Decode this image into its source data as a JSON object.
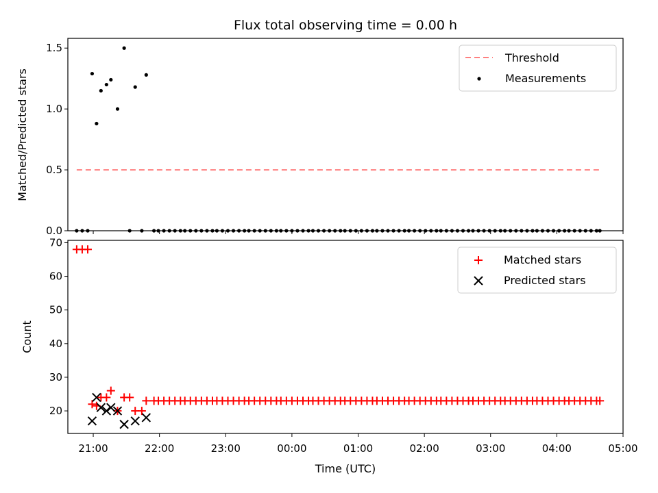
{
  "chart_data": [
    {
      "type": "scatter",
      "title": "Flux total observing time = 0.00 h",
      "ylabel": "Matched/Predicted stars",
      "xlabel": "",
      "xlim": [
        "20:37",
        "05:00"
      ],
      "ylim": [
        0,
        1.58
      ],
      "yticks": [
        0.0,
        0.5,
        1.0,
        1.5
      ],
      "ytick_labels": [
        "0.0",
        "0.5",
        "1.0",
        "1.5"
      ],
      "legend_position": "top-right",
      "grid": false,
      "threshold": {
        "name": "Threshold",
        "color": "#ff7f7f",
        "style": "dashed",
        "value": 0.5,
        "x_start": "20:45",
        "x_end": "04:39"
      },
      "series": [
        {
          "name": "Measurements",
          "marker": "dot",
          "color": "#000000",
          "points": [
            [
              "20:45",
              0
            ],
            [
              "20:50",
              0
            ],
            [
              "20:55",
              0
            ],
            [
              "20:59",
              1.29
            ],
            [
              "21:03",
              0.88
            ],
            [
              "21:07",
              1.15
            ],
            [
              "21:12",
              1.2
            ],
            [
              "21:16",
              1.24
            ],
            [
              "21:22",
              1.0
            ],
            [
              "21:28",
              1.5
            ],
            [
              "21:33",
              0
            ],
            [
              "21:38",
              1.18
            ],
            [
              "21:44",
              0
            ],
            [
              "21:48",
              1.28
            ],
            [
              "21:55",
              0
            ],
            [
              "21:59",
              0
            ],
            [
              "22:04",
              0
            ],
            [
              "22:09",
              0
            ],
            [
              "22:14",
              0
            ],
            [
              "22:19",
              0
            ],
            [
              "22:23",
              0
            ],
            [
              "22:28",
              0
            ],
            [
              "22:33",
              0
            ],
            [
              "22:38",
              0
            ],
            [
              "22:43",
              0
            ],
            [
              "22:48",
              0
            ],
            [
              "22:52",
              0
            ],
            [
              "22:57",
              0
            ],
            [
              "23:02",
              0
            ],
            [
              "23:07",
              0
            ],
            [
              "23:12",
              0
            ],
            [
              "23:17",
              0
            ],
            [
              "23:21",
              0
            ],
            [
              "23:26",
              0
            ],
            [
              "23:31",
              0
            ],
            [
              "23:36",
              0
            ],
            [
              "23:41",
              0
            ],
            [
              "23:46",
              0
            ],
            [
              "23:50",
              0
            ],
            [
              "23:55",
              0
            ],
            [
              "00:00",
              0
            ],
            [
              "00:05",
              0
            ],
            [
              "00:10",
              0
            ],
            [
              "00:15",
              0
            ],
            [
              "00:19",
              0
            ],
            [
              "00:24",
              0
            ],
            [
              "00:29",
              0
            ],
            [
              "00:34",
              0
            ],
            [
              "00:39",
              0
            ],
            [
              "00:44",
              0
            ],
            [
              "00:48",
              0
            ],
            [
              "00:53",
              0
            ],
            [
              "00:58",
              0
            ],
            [
              "01:03",
              0
            ],
            [
              "01:08",
              0
            ],
            [
              "01:13",
              0
            ],
            [
              "01:17",
              0
            ],
            [
              "01:22",
              0
            ],
            [
              "01:27",
              0
            ],
            [
              "01:32",
              0
            ],
            [
              "01:37",
              0
            ],
            [
              "01:42",
              0
            ],
            [
              "01:46",
              0
            ],
            [
              "01:51",
              0
            ],
            [
              "01:56",
              0
            ],
            [
              "02:01",
              0
            ],
            [
              "02:06",
              0
            ],
            [
              "02:11",
              0
            ],
            [
              "02:15",
              0
            ],
            [
              "02:20",
              0
            ],
            [
              "02:25",
              0
            ],
            [
              "02:30",
              0
            ],
            [
              "02:35",
              0
            ],
            [
              "02:40",
              0
            ],
            [
              "02:44",
              0
            ],
            [
              "02:49",
              0
            ],
            [
              "02:54",
              0
            ],
            [
              "02:59",
              0
            ],
            [
              "03:04",
              0
            ],
            [
              "03:09",
              0
            ],
            [
              "03:13",
              0
            ],
            [
              "03:18",
              0
            ],
            [
              "03:23",
              0
            ],
            [
              "03:28",
              0
            ],
            [
              "03:33",
              0
            ],
            [
              "03:38",
              0
            ],
            [
              "03:42",
              0
            ],
            [
              "03:47",
              0
            ],
            [
              "03:52",
              0
            ],
            [
              "03:57",
              0
            ],
            [
              "04:02",
              0
            ],
            [
              "04:07",
              0
            ],
            [
              "04:11",
              0
            ],
            [
              "04:16",
              0
            ],
            [
              "04:21",
              0
            ],
            [
              "04:26",
              0
            ],
            [
              "04:31",
              0
            ],
            [
              "04:36",
              0
            ],
            [
              "04:39",
              0
            ]
          ]
        }
      ]
    },
    {
      "type": "scatter",
      "title": "",
      "ylabel": "Count",
      "xlabel": "Time (UTC)",
      "xlim": [
        "20:37",
        "05:00"
      ],
      "ylim": [
        13.3,
        70.7
      ],
      "yticks": [
        20,
        30,
        40,
        50,
        60,
        70
      ],
      "ytick_labels": [
        "20",
        "30",
        "40",
        "50",
        "60",
        "70"
      ],
      "xticks": [
        "21:00",
        "22:00",
        "23:00",
        "00:00",
        "01:00",
        "02:00",
        "03:00",
        "04:00",
        "05:00"
      ],
      "xtick_labels": [
        "21:00",
        "22:00",
        "23:00",
        "00:00",
        "01:00",
        "02:00",
        "03:00",
        "04:00",
        "05:00"
      ],
      "legend_position": "top-right",
      "grid": false,
      "series": [
        {
          "name": "Matched stars",
          "marker": "plus",
          "color": "#ff0000",
          "points": [
            [
              "20:45",
              68
            ],
            [
              "20:50",
              68
            ],
            [
              "20:55",
              68
            ],
            [
              "20:59",
              22
            ],
            [
              "21:03",
              21.5
            ],
            [
              "21:07",
              24
            ],
            [
              "21:12",
              24
            ],
            [
              "21:16",
              26
            ],
            [
              "21:22",
              20
            ],
            [
              "21:28",
              24
            ],
            [
              "21:33",
              24
            ],
            [
              "21:38",
              20
            ],
            [
              "21:44",
              20
            ],
            [
              "21:48",
              23
            ],
            [
              "21:55",
              23
            ],
            [
              "21:59",
              23
            ],
            [
              "22:04",
              23
            ],
            [
              "22:09",
              23
            ],
            [
              "22:14",
              23
            ],
            [
              "22:19",
              23
            ],
            [
              "22:23",
              23
            ],
            [
              "22:28",
              23
            ],
            [
              "22:33",
              23
            ],
            [
              "22:38",
              23
            ],
            [
              "22:43",
              23
            ],
            [
              "22:48",
              23
            ],
            [
              "22:52",
              23
            ],
            [
              "22:57",
              23
            ],
            [
              "23:02",
              23
            ],
            [
              "23:07",
              23
            ],
            [
              "23:12",
              23
            ],
            [
              "23:17",
              23
            ],
            [
              "23:21",
              23
            ],
            [
              "23:26",
              23
            ],
            [
              "23:31",
              23
            ],
            [
              "23:36",
              23
            ],
            [
              "23:41",
              23
            ],
            [
              "23:46",
              23
            ],
            [
              "23:50",
              23
            ],
            [
              "23:55",
              23
            ],
            [
              "00:00",
              23
            ],
            [
              "00:05",
              23
            ],
            [
              "00:10",
              23
            ],
            [
              "00:15",
              23
            ],
            [
              "00:19",
              23
            ],
            [
              "00:24",
              23
            ],
            [
              "00:29",
              23
            ],
            [
              "00:34",
              23
            ],
            [
              "00:39",
              23
            ],
            [
              "00:44",
              23
            ],
            [
              "00:48",
              23
            ],
            [
              "00:53",
              23
            ],
            [
              "00:58",
              23
            ],
            [
              "01:03",
              23
            ],
            [
              "01:08",
              23
            ],
            [
              "01:13",
              23
            ],
            [
              "01:17",
              23
            ],
            [
              "01:22",
              23
            ],
            [
              "01:27",
              23
            ],
            [
              "01:32",
              23
            ],
            [
              "01:37",
              23
            ],
            [
              "01:42",
              23
            ],
            [
              "01:46",
              23
            ],
            [
              "01:51",
              23
            ],
            [
              "01:56",
              23
            ],
            [
              "02:01",
              23
            ],
            [
              "02:06",
              23
            ],
            [
              "02:11",
              23
            ],
            [
              "02:15",
              23
            ],
            [
              "02:20",
              23
            ],
            [
              "02:25",
              23
            ],
            [
              "02:30",
              23
            ],
            [
              "02:35",
              23
            ],
            [
              "02:40",
              23
            ],
            [
              "02:44",
              23
            ],
            [
              "02:49",
              23
            ],
            [
              "02:54",
              23
            ],
            [
              "02:59",
              23
            ],
            [
              "03:04",
              23
            ],
            [
              "03:09",
              23
            ],
            [
              "03:13",
              23
            ],
            [
              "03:18",
              23
            ],
            [
              "03:23",
              23
            ],
            [
              "03:28",
              23
            ],
            [
              "03:33",
              23
            ],
            [
              "03:38",
              23
            ],
            [
              "03:42",
              23
            ],
            [
              "03:47",
              23
            ],
            [
              "03:52",
              23
            ],
            [
              "03:57",
              23
            ],
            [
              "04:02",
              23
            ],
            [
              "04:07",
              23
            ],
            [
              "04:11",
              23
            ],
            [
              "04:16",
              23
            ],
            [
              "04:21",
              23
            ],
            [
              "04:26",
              23
            ],
            [
              "04:31",
              23
            ],
            [
              "04:36",
              23
            ],
            [
              "04:39",
              23
            ]
          ]
        },
        {
          "name": "Predicted stars",
          "marker": "x",
          "color": "#000000",
          "points": [
            [
              "20:59",
              17
            ],
            [
              "21:03",
              24
            ],
            [
              "21:07",
              21
            ],
            [
              "21:12",
              20
            ],
            [
              "21:16",
              21
            ],
            [
              "21:22",
              20
            ],
            [
              "21:28",
              16
            ],
            [
              "21:38",
              17
            ],
            [
              "21:48",
              18
            ]
          ]
        }
      ]
    }
  ]
}
